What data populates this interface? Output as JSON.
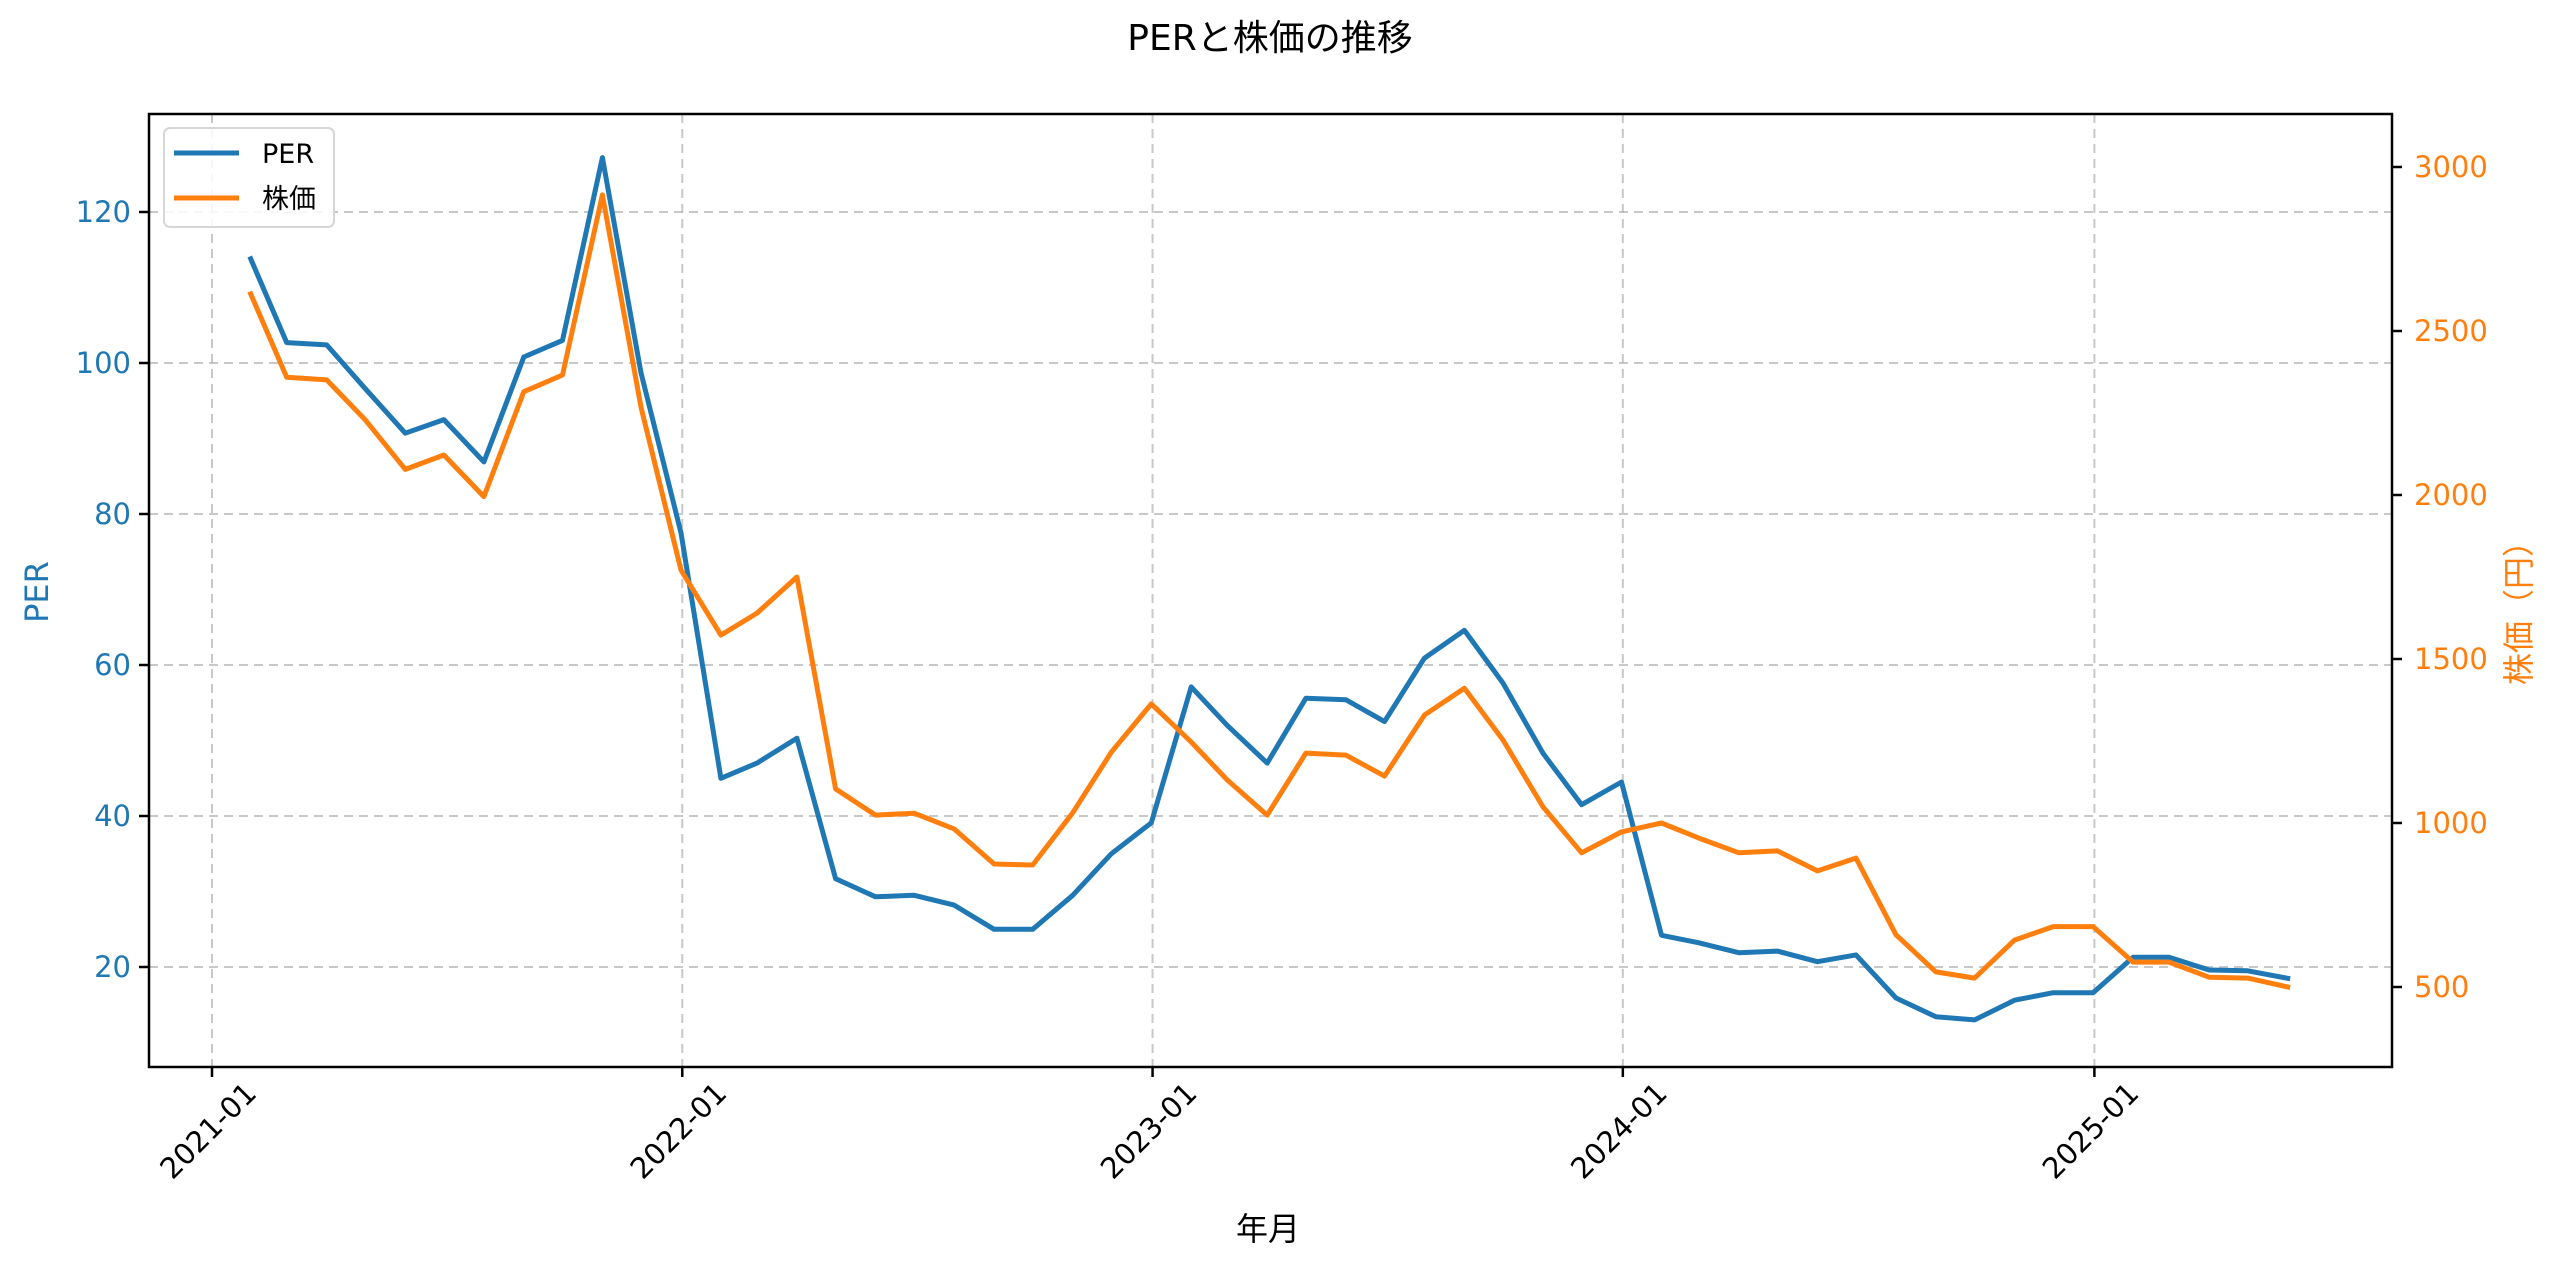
{
  "chart_data": {
    "type": "line",
    "title": "PERと株価の推移",
    "xlabel": "年月",
    "ylabel": "PER",
    "ylabel_right": "株価（円）",
    "x_tick_labels": [
      "2021-01",
      "2022-01",
      "2023-01",
      "2024-01",
      "2025-01"
    ],
    "y_left_ticks": [
      20,
      40,
      60,
      80,
      100,
      120
    ],
    "y_right_ticks": [
      500,
      1000,
      1500,
      2000,
      2500,
      3000
    ],
    "ylim_left": [
      8,
      133
    ],
    "ylim_right": [
      268,
      3160
    ],
    "grid": true,
    "legend_position": "upper left",
    "x": [
      "2021-01-31",
      "2021-02-28",
      "2021-03-31",
      "2021-04-30",
      "2021-05-31",
      "2021-06-30",
      "2021-07-31",
      "2021-08-31",
      "2021-09-30",
      "2021-10-31",
      "2021-11-30",
      "2021-12-31",
      "2022-01-31",
      "2022-02-28",
      "2022-03-31",
      "2022-04-30",
      "2022-05-31",
      "2022-06-30",
      "2022-07-31",
      "2022-08-31",
      "2022-09-30",
      "2022-10-31",
      "2022-11-30",
      "2022-12-31",
      "2023-01-31",
      "2023-02-28",
      "2023-03-31",
      "2023-04-30",
      "2023-05-31",
      "2023-06-30",
      "2023-07-31",
      "2023-08-31",
      "2023-09-30",
      "2023-10-31",
      "2023-11-30",
      "2023-12-31",
      "2024-01-31",
      "2024-02-29",
      "2024-03-31",
      "2024-04-30",
      "2024-05-31",
      "2024-06-30",
      "2024-07-31",
      "2024-08-31",
      "2024-09-30",
      "2024-10-31",
      "2024-11-30",
      "2024-12-31",
      "2025-01-31",
      "2025-02-28",
      "2025-03-31",
      "2025-04-30",
      "2025-05-31"
    ],
    "series": [
      {
        "name": "PER",
        "axis": "left",
        "color": "#1f77b4",
        "values": [
          113.8,
          102.7,
          102.4,
          96.6,
          90.7,
          92.5,
          86.9,
          100.8,
          103.0,
          127.2,
          98.7,
          77.5,
          45.0,
          47.0,
          50.3,
          31.7,
          29.3,
          29.5,
          28.2,
          25.0,
          25.0,
          29.5,
          35.0,
          39.1,
          57.1,
          52.0,
          47.0,
          55.6,
          55.4,
          52.5,
          60.9,
          64.6,
          57.6,
          48.3,
          41.5,
          44.5,
          24.2,
          23.2,
          21.9,
          22.1,
          20.7,
          21.6,
          15.9,
          13.4,
          13.0,
          15.6,
          16.6,
          16.6,
          21.3,
          21.3,
          19.6,
          19.5,
          18.5
        ]
      },
      {
        "name": "株価",
        "axis": "right",
        "color": "#ff7f0e",
        "values": [
          2613,
          2359,
          2351,
          2229,
          2078,
          2122,
          1995,
          2315,
          2366,
          2915,
          2268,
          1771,
          1573,
          1640,
          1750,
          1104,
          1024,
          1030,
          982,
          875,
          872,
          1031,
          1216,
          1363,
          1247,
          1131,
          1024,
          1213,
          1207,
          1143,
          1329,
          1411,
          1253,
          1049,
          909,
          973,
          1000,
          954,
          909,
          915,
          854,
          893,
          659,
          546,
          527,
          643,
          684,
          684,
          576,
          576,
          530,
          527,
          500
        ]
      }
    ]
  },
  "legend": {
    "items": [
      {
        "label": "PER",
        "color": "#1f77b4"
      },
      {
        "label": "株価",
        "color": "#ff7f0e"
      }
    ]
  }
}
